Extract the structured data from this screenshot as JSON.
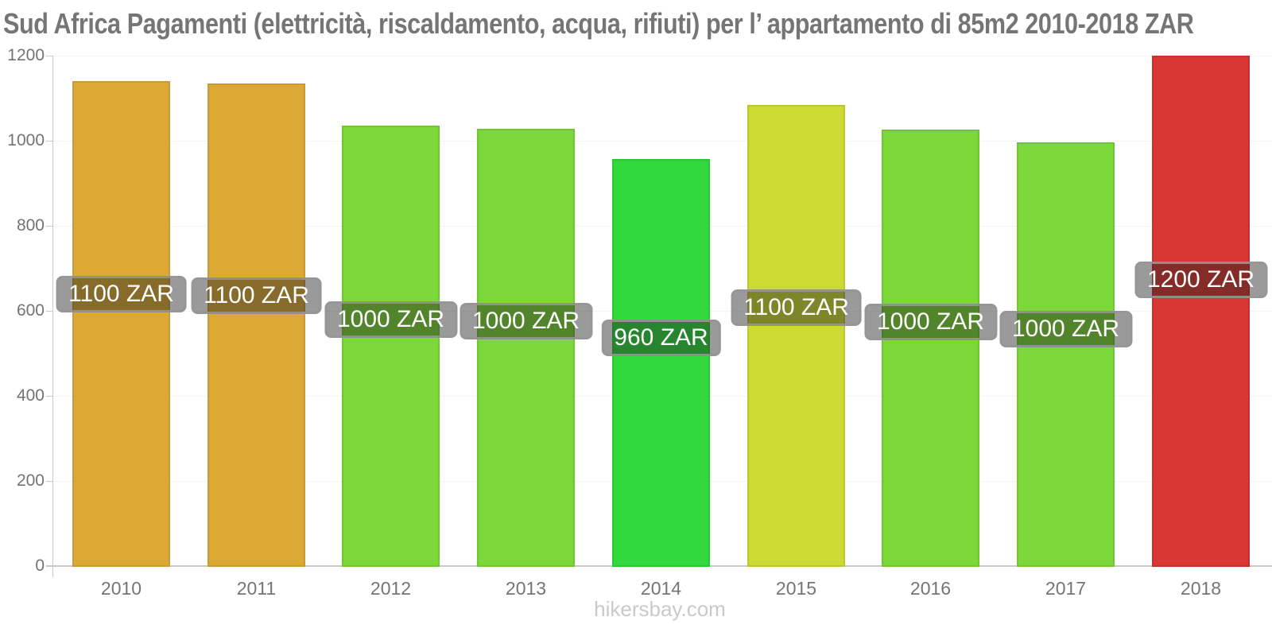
{
  "title": "Sud Africa Pagamenti (elettricità, riscaldamento, acqua, rifiuti) per l’ appartamento di 85m2 2010-2018 ZAR",
  "watermark": "hikersbay.com",
  "colors": {
    "title_text": "#757575",
    "axis_label_text": "#737373",
    "x_label_text": "#757575",
    "axis_line": "#c9c9c9",
    "grid_line": "#f4f4f4",
    "badge_background": "rgba(30,30,30,0.45)",
    "badge_border": "rgba(150,150,150,0.9)",
    "badge_text": "#ffffff",
    "watermark_text": "#c9c9c9"
  },
  "chart_data": {
    "type": "bar",
    "title": "Sud Africa Pagamenti (elettricità, riscaldamento, acqua, rifiuti) per l’ appartamento di 85m2 2010-2018 ZAR",
    "xlabel": "",
    "ylabel": "",
    "ylim": [
      0,
      1200
    ],
    "yticks": [
      0,
      200,
      400,
      600,
      800,
      1000,
      1200
    ],
    "grid": "horizontal-faint",
    "legend": false,
    "unit": "ZAR",
    "categories": [
      "2010",
      "2011",
      "2012",
      "2013",
      "2014",
      "2015",
      "2016",
      "2017",
      "2018"
    ],
    "values": [
      1140,
      1134,
      1036,
      1028,
      957,
      1084,
      1026,
      996,
      1200
    ],
    "bar_labels": [
      "1100 ZAR",
      "1100 ZAR",
      "1000 ZAR",
      "1000 ZAR",
      "960 ZAR",
      "1100 ZAR",
      "1000 ZAR",
      "1000 ZAR",
      "1200 ZAR"
    ],
    "bars": [
      {
        "year": "2010",
        "value": 1140,
        "label": "1100 ZAR",
        "fill": "#DCA935",
        "stroke": "#C99A3A"
      },
      {
        "year": "2011",
        "value": 1134,
        "label": "1100 ZAR",
        "fill": "#DCA935",
        "stroke": "#C99A3A"
      },
      {
        "year": "2012",
        "value": 1036,
        "label": "1000 ZAR",
        "fill": "#7CD838",
        "stroke": "#70C533"
      },
      {
        "year": "2013",
        "value": 1028,
        "label": "1000 ZAR",
        "fill": "#7CD838",
        "stroke": "#70C533"
      },
      {
        "year": "2014",
        "value": 957,
        "label": "960 ZAR",
        "fill": "#31D93C",
        "stroke": "#2CC637"
      },
      {
        "year": "2015",
        "value": 1084,
        "label": "1100 ZAR",
        "fill": "#CEDA34",
        "stroke": "#BCC72F"
      },
      {
        "year": "2016",
        "value": 1026,
        "label": "1000 ZAR",
        "fill": "#7CD838",
        "stroke": "#70C533"
      },
      {
        "year": "2017",
        "value": 996,
        "label": "1000 ZAR",
        "fill": "#7CD838",
        "stroke": "#70C533"
      },
      {
        "year": "2018",
        "value": 1200,
        "label": "1200 ZAR",
        "fill": "#D93732",
        "stroke": "#C4322D"
      }
    ]
  }
}
